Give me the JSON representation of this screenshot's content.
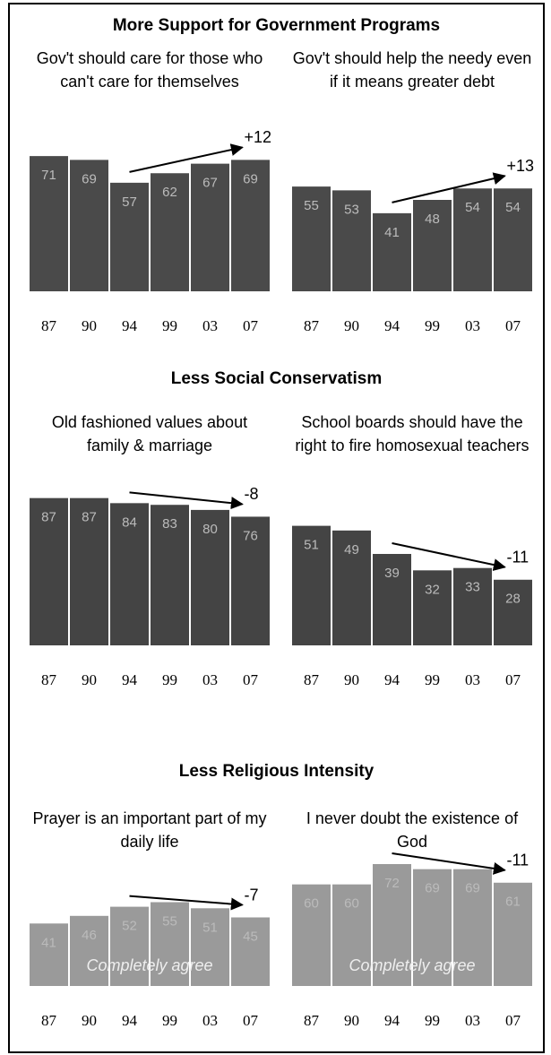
{
  "headings": [
    "More Support for Government Programs",
    "Less Social Conservatism",
    "Less Religious Intensity"
  ],
  "chart_data": [
    {
      "type": "bar",
      "title": "Gov't should care for those who can't care for themselves",
      "annotation": "+12",
      "categories": [
        "87",
        "90",
        "94",
        "99",
        "03",
        "07"
      ],
      "values": [
        71,
        69,
        57,
        62,
        67,
        69
      ],
      "color": "#4a4a4a",
      "ylim": [
        0,
        80
      ]
    },
    {
      "type": "bar",
      "title": "Gov't should help the needy even if it means greater debt",
      "annotation": "+13",
      "categories": [
        "87",
        "90",
        "94",
        "99",
        "03",
        "07"
      ],
      "values": [
        55,
        53,
        41,
        48,
        54,
        54
      ],
      "color": "#4a4a4a",
      "ylim": [
        0,
        80
      ]
    },
    {
      "type": "bar",
      "title": "Old fashioned values about family & marriage",
      "annotation": "-8",
      "categories": [
        "87",
        "90",
        "94",
        "99",
        "03",
        "07"
      ],
      "values": [
        87,
        87,
        84,
        83,
        80,
        76
      ],
      "color": "#444444",
      "ylim": [
        0,
        90
      ]
    },
    {
      "type": "bar",
      "title": "School boards should have the right to fire homosexual teachers",
      "annotation": "-11",
      "categories": [
        "87",
        "90",
        "94",
        "99",
        "03",
        "07"
      ],
      "values": [
        51,
        49,
        39,
        32,
        33,
        28
      ],
      "color": "#444444",
      "ylim": [
        0,
        65
      ]
    },
    {
      "type": "bar",
      "title": "Prayer is an important part of my daily life",
      "annotation": "-7",
      "footnote": "Completely agree",
      "categories": [
        "87",
        "90",
        "94",
        "99",
        "03",
        "07"
      ],
      "values": [
        41,
        46,
        52,
        55,
        51,
        45
      ],
      "color": "#9a9a9a",
      "ylim": [
        0,
        100
      ]
    },
    {
      "type": "bar",
      "title": "I never doubt the existence of God",
      "annotation": "-11",
      "footnote": "Completely agree",
      "categories": [
        "87",
        "90",
        "94",
        "99",
        "03",
        "07"
      ],
      "values": [
        60,
        60,
        72,
        69,
        69,
        61
      ],
      "color": "#9a9a9a",
      "ylim": [
        0,
        90
      ]
    }
  ]
}
